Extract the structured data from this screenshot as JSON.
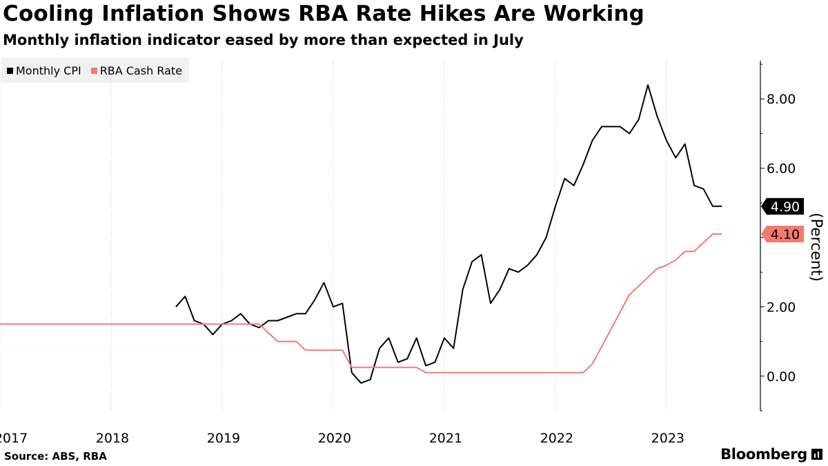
{
  "header": {
    "title": "Cooling Inflation Shows RBA Rate Hikes Are Working",
    "subtitle": "Monthly inflation indicator eased by more than expected in July"
  },
  "footer": {
    "source": "Source: ABS, RBA",
    "brand": "Bloomberg"
  },
  "chart_data": {
    "type": "line",
    "title": "Cooling Inflation Shows RBA Rate Hikes Are Working",
    "subtitle": "Monthly inflation indicator eased by more than expected in July",
    "ylabel": "(Percent)",
    "xlabel": "",
    "ylim": [
      -1.0,
      9.1
    ],
    "xlim": [
      "2017-01",
      "2023-11"
    ],
    "y_ticks": [
      0,
      2,
      4,
      6,
      8
    ],
    "y_tick_labels": [
      "0.00",
      "2.00",
      "4.00",
      "6.00",
      "8.00"
    ],
    "x_tick_labels": [
      {
        "label": "2017",
        "date": "2017-01"
      },
      {
        "label": "2018",
        "date": "2018-01"
      },
      {
        "label": "2019",
        "date": "2019-01"
      },
      {
        "label": "2020",
        "date": "2020-01"
      },
      {
        "label": "2021",
        "date": "2021-01"
      },
      {
        "label": "2022",
        "date": "2022-01"
      },
      {
        "label": "2023",
        "date": "2023-01"
      }
    ],
    "grid": "vertical dotted",
    "legend_position": "top-left",
    "series": [
      {
        "name": "Monthly CPI",
        "color": "#000000",
        "last_value_label": "4.90",
        "x": [
          "2018-08",
          "2018-09",
          "2018-10",
          "2018-11",
          "2018-12",
          "2019-01",
          "2019-02",
          "2019-03",
          "2019-04",
          "2019-05",
          "2019-06",
          "2019-07",
          "2019-08",
          "2019-09",
          "2019-10",
          "2019-11",
          "2019-12",
          "2020-01",
          "2020-02",
          "2020-03",
          "2020-04",
          "2020-05",
          "2020-06",
          "2020-07",
          "2020-08",
          "2020-09",
          "2020-10",
          "2020-11",
          "2020-12",
          "2021-01",
          "2021-02",
          "2021-03",
          "2021-04",
          "2021-05",
          "2021-06",
          "2021-07",
          "2021-08",
          "2021-09",
          "2021-10",
          "2021-11",
          "2021-12",
          "2022-01",
          "2022-02",
          "2022-03",
          "2022-04",
          "2022-05",
          "2022-06",
          "2022-07",
          "2022-08",
          "2022-09",
          "2022-10",
          "2022-11",
          "2022-12",
          "2023-01",
          "2023-02",
          "2023-03",
          "2023-04",
          "2023-05",
          "2023-06",
          "2023-07"
        ],
        "values": [
          2.0,
          2.3,
          1.6,
          1.5,
          1.2,
          1.5,
          1.6,
          1.8,
          1.5,
          1.4,
          1.6,
          1.6,
          1.7,
          1.8,
          1.8,
          2.2,
          2.7,
          2.0,
          2.1,
          0.1,
          -0.2,
          -0.1,
          0.8,
          1.1,
          0.4,
          0.5,
          1.1,
          0.3,
          0.4,
          1.1,
          0.8,
          2.5,
          3.3,
          3.5,
          2.1,
          2.5,
          3.1,
          3.0,
          3.2,
          3.5,
          4.0,
          4.9,
          5.7,
          5.5,
          6.1,
          6.8,
          7.2,
          7.2,
          7.2,
          7.0,
          7.4,
          8.4,
          7.5,
          6.8,
          6.3,
          6.7,
          5.5,
          5.4,
          4.9,
          4.9
        ]
      },
      {
        "name": "RBA Cash Rate",
        "color": "#f47a70",
        "last_value_label": "4.10",
        "step": true,
        "x": [
          "2017-01",
          "2019-05",
          "2019-06",
          "2019-07",
          "2019-09",
          "2019-10",
          "2020-02",
          "2020-03",
          "2020-10",
          "2020-11",
          "2022-04",
          "2022-05",
          "2022-06",
          "2022-07",
          "2022-08",
          "2022-09",
          "2022-10",
          "2022-11",
          "2022-12",
          "2023-01",
          "2023-02",
          "2023-03",
          "2023-04",
          "2023-05",
          "2023-06",
          "2023-07"
        ],
        "values": [
          1.5,
          1.5,
          1.25,
          1.0,
          1.0,
          0.75,
          0.75,
          0.25,
          0.25,
          0.1,
          0.1,
          0.35,
          0.85,
          1.35,
          1.85,
          2.35,
          2.6,
          2.85,
          3.1,
          3.2,
          3.35,
          3.6,
          3.6,
          3.85,
          4.1,
          4.1
        ]
      }
    ]
  }
}
